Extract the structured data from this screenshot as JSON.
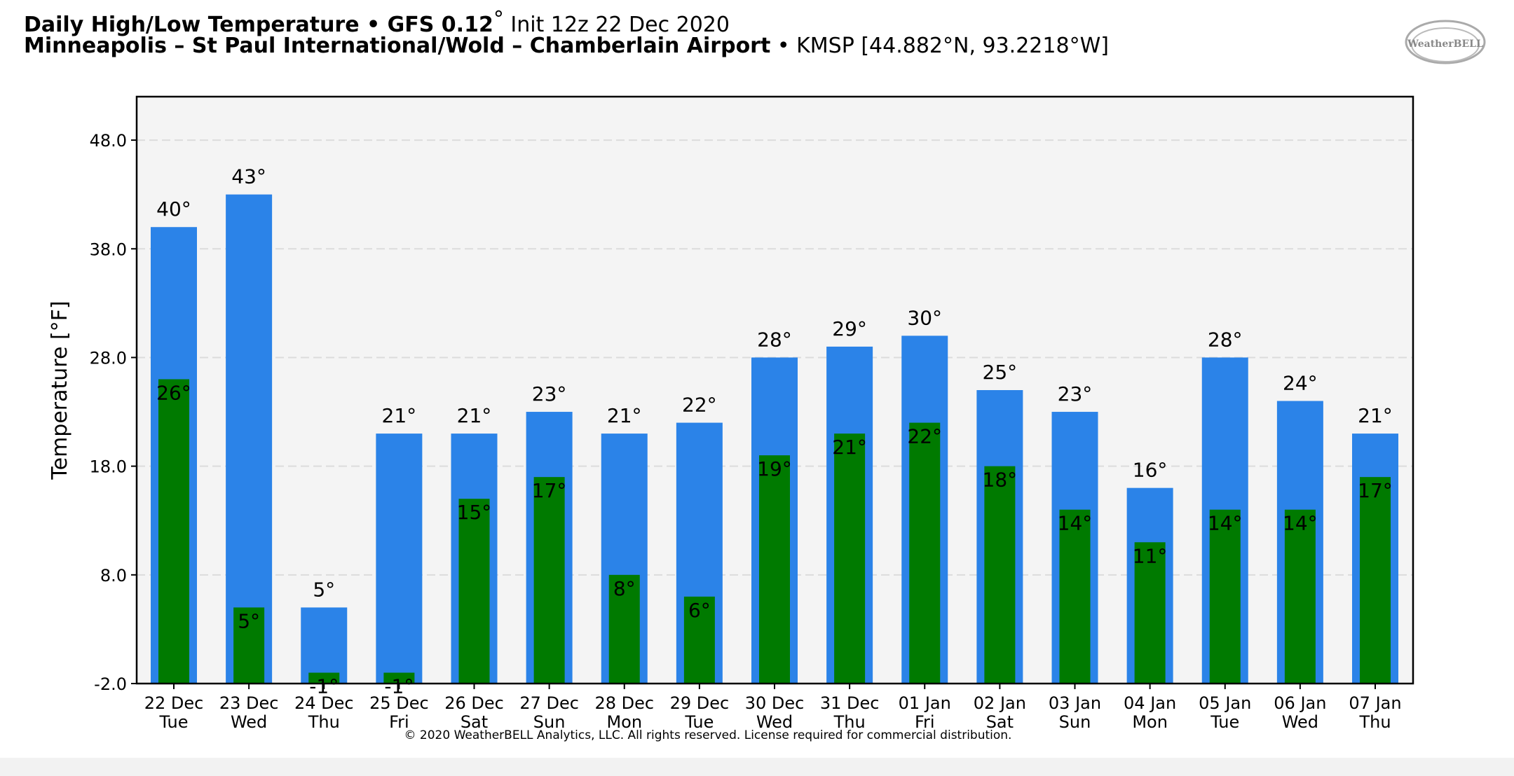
{
  "title": {
    "line1_bold": "Daily High/Low Temperature • GFS 0.12",
    "line1_degree": "°",
    "line1_normal": " Init 12z 22 Dec 2020",
    "line2_bold": "Minneapolis – St Paul International/Wold – Chamberlain Airport",
    "line2_normal": " • KMSP [44.882°N, 93.2218°W]"
  },
  "logo": {
    "text": "WeatherBELL"
  },
  "copyright": "© 2020 WeatherBELL Analytics, LLC. All rights reserved. License required for commercial distribution.",
  "colors": {
    "high_bar": "#2b83e8",
    "low_bar": "#007a00",
    "plot_bg": "#f4f4f4",
    "grid": "#dcdcdc"
  },
  "chart_data": {
    "type": "bar",
    "title": "Daily High/Low Temperature",
    "ylabel": "Temperature [°F]",
    "ylim": [
      -2.0,
      52.0
    ],
    "yticks": [
      -2.0,
      8.0,
      18.0,
      28.0,
      38.0,
      48.0
    ],
    "ytick_labels": [
      "-2.0",
      "8.0",
      "18.0",
      "28.0",
      "38.0",
      "48.0"
    ],
    "grid": true,
    "categories": [
      [
        "22 Dec",
        "Tue"
      ],
      [
        "23 Dec",
        "Wed"
      ],
      [
        "24 Dec",
        "Thu"
      ],
      [
        "25 Dec",
        "Fri"
      ],
      [
        "26 Dec",
        "Sat"
      ],
      [
        "27 Dec",
        "Sun"
      ],
      [
        "28 Dec",
        "Mon"
      ],
      [
        "29 Dec",
        "Tue"
      ],
      [
        "30 Dec",
        "Wed"
      ],
      [
        "31 Dec",
        "Thu"
      ],
      [
        "01 Jan",
        "Fri"
      ],
      [
        "02 Jan",
        "Sat"
      ],
      [
        "03 Jan",
        "Sun"
      ],
      [
        "04 Jan",
        "Mon"
      ],
      [
        "05 Jan",
        "Tue"
      ],
      [
        "06 Jan",
        "Wed"
      ],
      [
        "07 Jan",
        "Thu"
      ]
    ],
    "series": [
      {
        "name": "High",
        "values": [
          40,
          43,
          5,
          21,
          21,
          23,
          21,
          22,
          28,
          29,
          30,
          25,
          23,
          16,
          28,
          24,
          21
        ],
        "labels": [
          "40°",
          "43°",
          "5°",
          "21°",
          "21°",
          "23°",
          "21°",
          "22°",
          "28°",
          "29°",
          "30°",
          "25°",
          "23°",
          "16°",
          "28°",
          "24°",
          "21°"
        ]
      },
      {
        "name": "Low",
        "values": [
          26,
          5,
          -1,
          -1,
          15,
          17,
          8,
          6,
          19,
          21,
          22,
          18,
          14,
          11,
          14,
          14,
          17
        ],
        "labels": [
          "26°",
          "5°",
          "-1°",
          "-1°",
          "15°",
          "17°",
          "8°",
          "6°",
          "19°",
          "21°",
          "22°",
          "18°",
          "14°",
          "11°",
          "14°",
          "14°",
          "17°"
        ]
      }
    ]
  }
}
